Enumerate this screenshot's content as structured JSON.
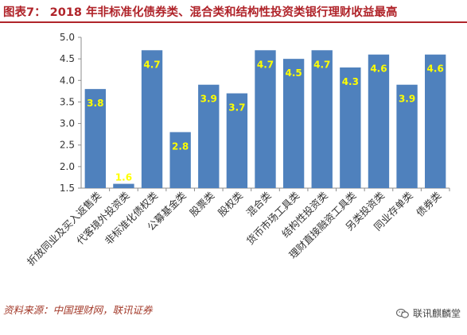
{
  "header": {
    "title": "图表7：  2018 年非标准化债券类、混合类和结构性投资类银行理财收益最高"
  },
  "footer": {
    "source": "资料来源：中国理财网，联讯证券",
    "brand": "联讯麒麟堂",
    "brand_icon": "wechat-icon"
  },
  "colors": {
    "bar": "#4f81bd",
    "label_value": "#ffff00",
    "title": "#b0242a"
  },
  "chart_data": {
    "type": "bar",
    "categories": [
      "折放同业及买入返售类",
      "代客境外投资类",
      "非标准化债权类",
      "公募基金类",
      "股票类",
      "股权类",
      "混合类",
      "货币市场工具类",
      "结构性投资类",
      "理财直接融资工具类",
      "另类投资类",
      "同业存单类",
      "债券类"
    ],
    "values": [
      3.8,
      1.6,
      4.7,
      2.8,
      3.9,
      3.7,
      4.7,
      4.5,
      4.7,
      4.3,
      4.6,
      3.9,
      4.6
    ],
    "value_labels": [
      "3.8",
      "1.6",
      "4.7",
      "2.8",
      "3.9",
      "3.7",
      "4.7",
      "4.5",
      "4.7",
      "4.3",
      "4.6",
      "3.9",
      "4.6"
    ],
    "yticks": [
      "1.5",
      "2.0",
      "2.5",
      "3.0",
      "3.5",
      "4.0",
      "4.5",
      "5.0"
    ],
    "ylim": [
      1.5,
      5.0
    ],
    "grid": false
  }
}
